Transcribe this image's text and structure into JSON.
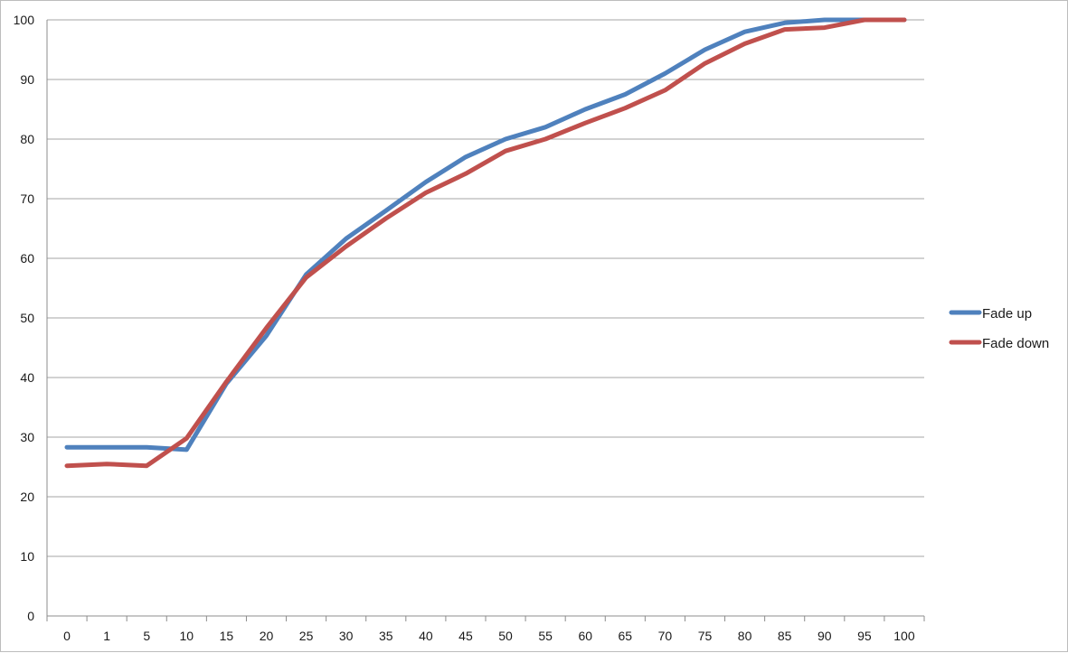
{
  "chart_data": {
    "type": "line",
    "title": "",
    "xlabel": "",
    "ylabel": "",
    "categories": [
      "0",
      "1",
      "5",
      "10",
      "15",
      "20",
      "25",
      "30",
      "35",
      "40",
      "45",
      "50",
      "55",
      "60",
      "65",
      "70",
      "75",
      "80",
      "85",
      "90",
      "95",
      "100"
    ],
    "ylim": [
      0,
      100
    ],
    "yticks": [
      0,
      10,
      20,
      30,
      40,
      50,
      60,
      70,
      80,
      90,
      100
    ],
    "grid": true,
    "legend_position": "right",
    "series": [
      {
        "name": "Fade up",
        "color": "#4f81bd",
        "values": [
          28.3,
          28.3,
          28.3,
          27.9,
          39,
          47,
          57.3,
          63.3,
          68,
          72.8,
          77,
          80,
          82,
          85,
          87.5,
          91,
          95,
          98,
          99.5,
          100,
          100,
          100
        ]
      },
      {
        "name": "Fade down",
        "color": "#c0504d",
        "values": [
          25.2,
          25.5,
          25.2,
          29.8,
          39.3,
          48.3,
          56.8,
          62,
          66.7,
          71,
          74.2,
          78,
          80,
          82.7,
          85.2,
          88.2,
          92.7,
          96,
          98.4,
          98.7,
          100,
          100
        ]
      }
    ]
  }
}
